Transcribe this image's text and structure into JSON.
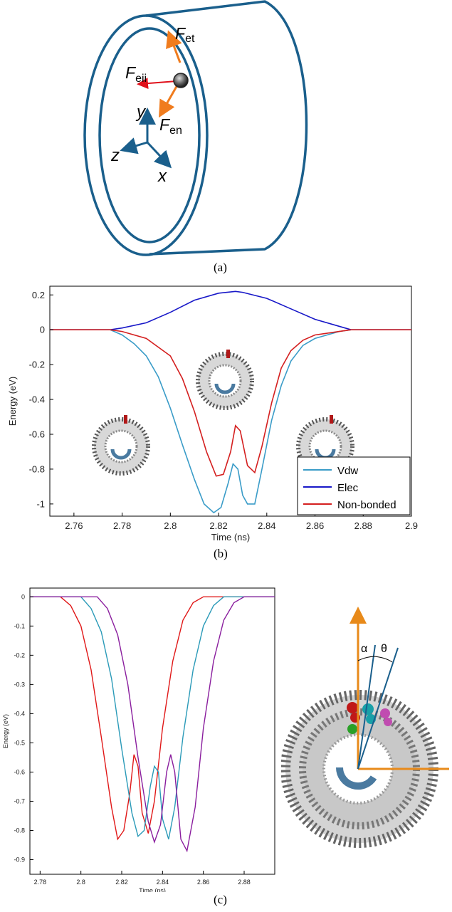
{
  "panel_a": {
    "caption": "(a)",
    "force_labels": {
      "et": {
        "main": "F",
        "sub": "et"
      },
      "eii": {
        "main": "F",
        "sub": "eii"
      },
      "en": {
        "main": "F",
        "sub": "en"
      }
    },
    "axis_labels": {
      "x": "x",
      "y": "y",
      "z": "z"
    },
    "colors": {
      "tube": "#1a5f8c",
      "force_orange": "#f07c1e",
      "force_red": "#e0101a",
      "axes": "#1a5f8c"
    }
  },
  "panel_b": {
    "caption": "(b)",
    "legend": [
      "Vdw",
      "Elec",
      "Non-bonded"
    ]
  },
  "panel_c": {
    "caption": "(c)",
    "angle_labels": {
      "alpha": "α",
      "theta": "θ"
    }
  },
  "chart_data": [
    {
      "type": "line",
      "title": "",
      "xlabel": "Time (ns)",
      "ylabel": "Energy (eV)",
      "xlim": [
        2.75,
        2.9
      ],
      "ylim": [
        -1.07,
        0.25
      ],
      "xticks": [
        "2.76",
        "2.78",
        "2.8",
        "2.82",
        "2.84",
        "2.86",
        "2.88",
        "2.9"
      ],
      "yticks": [
        "0.2",
        "0",
        "-0.2",
        "-0.4",
        "-0.6",
        "-0.8",
        "-1"
      ],
      "legend_position": "bottom-right",
      "grid": false,
      "series": [
        {
          "name": "Vdw",
          "color": "#3a9cc8",
          "x": [
            2.75,
            2.775,
            2.78,
            2.785,
            2.79,
            2.795,
            2.8,
            2.805,
            2.81,
            2.814,
            2.818,
            2.821,
            2.824,
            2.826,
            2.828,
            2.83,
            2.832,
            2.835,
            2.838,
            2.842,
            2.846,
            2.85,
            2.855,
            2.86,
            2.865,
            2.87,
            2.875,
            2.878,
            2.9
          ],
          "y": [
            0,
            0,
            -0.03,
            -0.08,
            -0.15,
            -0.27,
            -0.45,
            -0.66,
            -0.86,
            -1.0,
            -1.05,
            -1.02,
            -0.88,
            -0.77,
            -0.8,
            -0.95,
            -1.0,
            -1.0,
            -0.8,
            -0.52,
            -0.32,
            -0.18,
            -0.09,
            -0.05,
            -0.03,
            -0.01,
            0,
            0,
            0
          ]
        },
        {
          "name": "Elec",
          "color": "#1818c8",
          "x": [
            2.75,
            2.775,
            2.78,
            2.79,
            2.8,
            2.81,
            2.82,
            2.827,
            2.83,
            2.84,
            2.85,
            2.86,
            2.87,
            2.875,
            2.9
          ],
          "y": [
            0,
            0,
            0.01,
            0.04,
            0.1,
            0.17,
            0.21,
            0.22,
            0.215,
            0.18,
            0.12,
            0.06,
            0.02,
            0,
            0
          ]
        },
        {
          "name": "Non-bonded",
          "color": "#d41f1f",
          "x": [
            2.75,
            2.775,
            2.78,
            2.79,
            2.8,
            2.805,
            2.81,
            2.815,
            2.819,
            2.822,
            2.825,
            2.827,
            2.829,
            2.832,
            2.835,
            2.838,
            2.842,
            2.846,
            2.85,
            2.855,
            2.86,
            2.865,
            2.87,
            2.875,
            2.9
          ],
          "y": [
            0,
            0,
            -0.01,
            -0.05,
            -0.15,
            -0.28,
            -0.47,
            -0.7,
            -0.84,
            -0.83,
            -0.7,
            -0.55,
            -0.58,
            -0.78,
            -0.82,
            -0.67,
            -0.42,
            -0.22,
            -0.12,
            -0.06,
            -0.03,
            -0.02,
            -0.01,
            0,
            0
          ]
        }
      ]
    },
    {
      "type": "line",
      "title": "",
      "xlabel": "Time (ns)",
      "ylabel": "Energy (eV)",
      "xlim": [
        2.775,
        2.895
      ],
      "ylim": [
        -0.95,
        0.03
      ],
      "xticks": [
        "2.78",
        "2.8",
        "2.82",
        "2.84",
        "2.86",
        "2.88"
      ],
      "yticks": [
        "0",
        "-0.1",
        "-0.2",
        "-0.3",
        "-0.4",
        "-0.5",
        "-0.6",
        "-0.7",
        "-0.8",
        "-0.9"
      ],
      "grid": false,
      "series": [
        {
          "color": "#e01818",
          "x": [
            2.775,
            2.79,
            2.795,
            2.8,
            2.805,
            2.81,
            2.815,
            2.818,
            2.821,
            2.824,
            2.826,
            2.828,
            2.83,
            2.833,
            2.836,
            2.84,
            2.845,
            2.85,
            2.855,
            2.86,
            2.865,
            2.895
          ],
          "y": [
            0,
            0,
            -0.03,
            -0.1,
            -0.25,
            -0.48,
            -0.72,
            -0.83,
            -0.8,
            -0.67,
            -0.54,
            -0.58,
            -0.74,
            -0.81,
            -0.7,
            -0.45,
            -0.22,
            -0.08,
            -0.02,
            0,
            0,
            0
          ]
        },
        {
          "color": "#2a9ab8",
          "x": [
            2.775,
            2.8,
            2.805,
            2.81,
            2.815,
            2.82,
            2.825,
            2.828,
            2.831,
            2.834,
            2.836,
            2.838,
            2.84,
            2.843,
            2.846,
            2.85,
            2.855,
            2.86,
            2.865,
            2.87,
            2.875,
            2.895
          ],
          "y": [
            0,
            0,
            -0.04,
            -0.12,
            -0.28,
            -0.52,
            -0.74,
            -0.82,
            -0.8,
            -0.65,
            -0.58,
            -0.6,
            -0.76,
            -0.83,
            -0.72,
            -0.48,
            -0.25,
            -0.1,
            -0.03,
            0,
            0,
            0
          ]
        },
        {
          "color": "#8a1e9e",
          "x": [
            2.775,
            2.808,
            2.813,
            2.818,
            2.823,
            2.828,
            2.833,
            2.836,
            2.839,
            2.842,
            2.844,
            2.846,
            2.849,
            2.852,
            2.856,
            2.86,
            2.865,
            2.87,
            2.875,
            2.88,
            2.885,
            2.895
          ],
          "y": [
            0,
            0,
            -0.04,
            -0.13,
            -0.3,
            -0.55,
            -0.77,
            -0.84,
            -0.78,
            -0.6,
            -0.54,
            -0.6,
            -0.83,
            -0.87,
            -0.72,
            -0.45,
            -0.22,
            -0.08,
            -0.02,
            0,
            0,
            0
          ]
        }
      ]
    }
  ]
}
